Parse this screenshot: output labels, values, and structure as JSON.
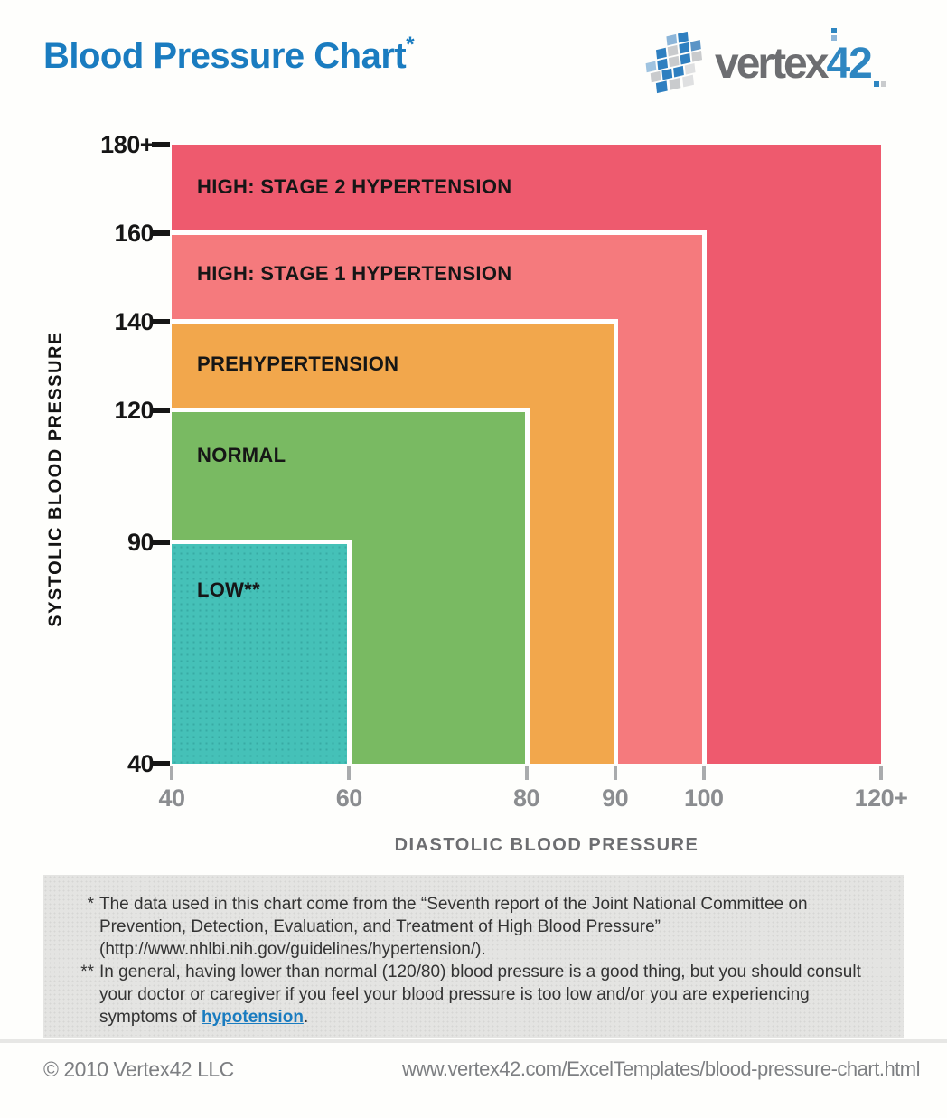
{
  "title": {
    "text": "Blood Pressure Chart",
    "asterisk": "*"
  },
  "logo": {
    "word": "vertex",
    "number": "42"
  },
  "chart_data": {
    "type": "area",
    "title": "Blood Pressure Chart",
    "xlabel": "DIASTOLIC BLOOD PRESSURE",
    "ylabel": "SYSTOLIC BLOOD PRESSURE",
    "xlim": [
      40,
      120
    ],
    "ylim": [
      40,
      180
    ],
    "x_ticks": [
      {
        "value": 40,
        "label": "40"
      },
      {
        "value": 60,
        "label": "60"
      },
      {
        "value": 80,
        "label": "80"
      },
      {
        "value": 90,
        "label": "90"
      },
      {
        "value": 100,
        "label": "100"
      },
      {
        "value": 120,
        "label": "120+"
      }
    ],
    "y_ticks": [
      {
        "value": 40,
        "label": "40"
      },
      {
        "value": 90,
        "label": "90"
      },
      {
        "value": 120,
        "label": "120"
      },
      {
        "value": 140,
        "label": "140"
      },
      {
        "value": 160,
        "label": "160"
      },
      {
        "value": 180,
        "label": "180+"
      }
    ],
    "regions": [
      {
        "label": "HIGH: STAGE 2 HYPERTENSION",
        "diastolic_max": 120,
        "diastolic_max_label": "120+",
        "systolic_max": 180,
        "systolic_max_label": "180+",
        "color": "#ee5a6e",
        "dotted": false
      },
      {
        "label": "HIGH: STAGE 1 HYPERTENSION",
        "diastolic_max": 100,
        "diastolic_max_label": "100",
        "systolic_max": 160,
        "systolic_max_label": "160",
        "color": "#f57a7d",
        "dotted": false
      },
      {
        "label": "PREHYPERTENSION",
        "diastolic_max": 90,
        "diastolic_max_label": "90",
        "systolic_max": 140,
        "systolic_max_label": "140",
        "color": "#f2a74c",
        "dotted": false
      },
      {
        "label": "NORMAL",
        "diastolic_max": 80,
        "diastolic_max_label": "80",
        "systolic_max": 120,
        "systolic_max_label": "120",
        "color": "#79ba62",
        "dotted": false
      },
      {
        "label": "LOW**",
        "diastolic_max": 60,
        "diastolic_max_label": "60",
        "systolic_max": 90,
        "systolic_max_label": "90",
        "color": "#45c1b8",
        "dotted": true
      }
    ]
  },
  "footnotes": [
    {
      "marker": "*",
      "text": "The data used in this chart come from the “Seventh report of the Joint National Committee on Prevention, Detection, Evaluation, and Treatment of High Blood Pressure” (http://www.nhlbi.nih.gov/guidelines/hypertension/).",
      "link_text": "",
      "text_after": ""
    },
    {
      "marker": "**",
      "text": "In general, having lower than normal (120/80) blood pressure is a good thing, but you should consult your doctor or caregiver if you feel your blood pressure is too low and/or you are experiencing symptoms of ",
      "link_text": "hypotension",
      "text_after": "."
    }
  ],
  "footer": {
    "copyright": "© 2010 Vertex42 LLC",
    "url": "www.vertex42.com/ExcelTemplates/blood-pressure-chart.html"
  },
  "colors": {
    "accent_blue": "#1a7cc0",
    "logo_gray": "#6d6e71",
    "logo_blue": "#2e86c1",
    "x_tick_gray": "#8b8d90",
    "footnote_bg": "#e4e4e2",
    "footer_gray": "#7d7f82"
  }
}
